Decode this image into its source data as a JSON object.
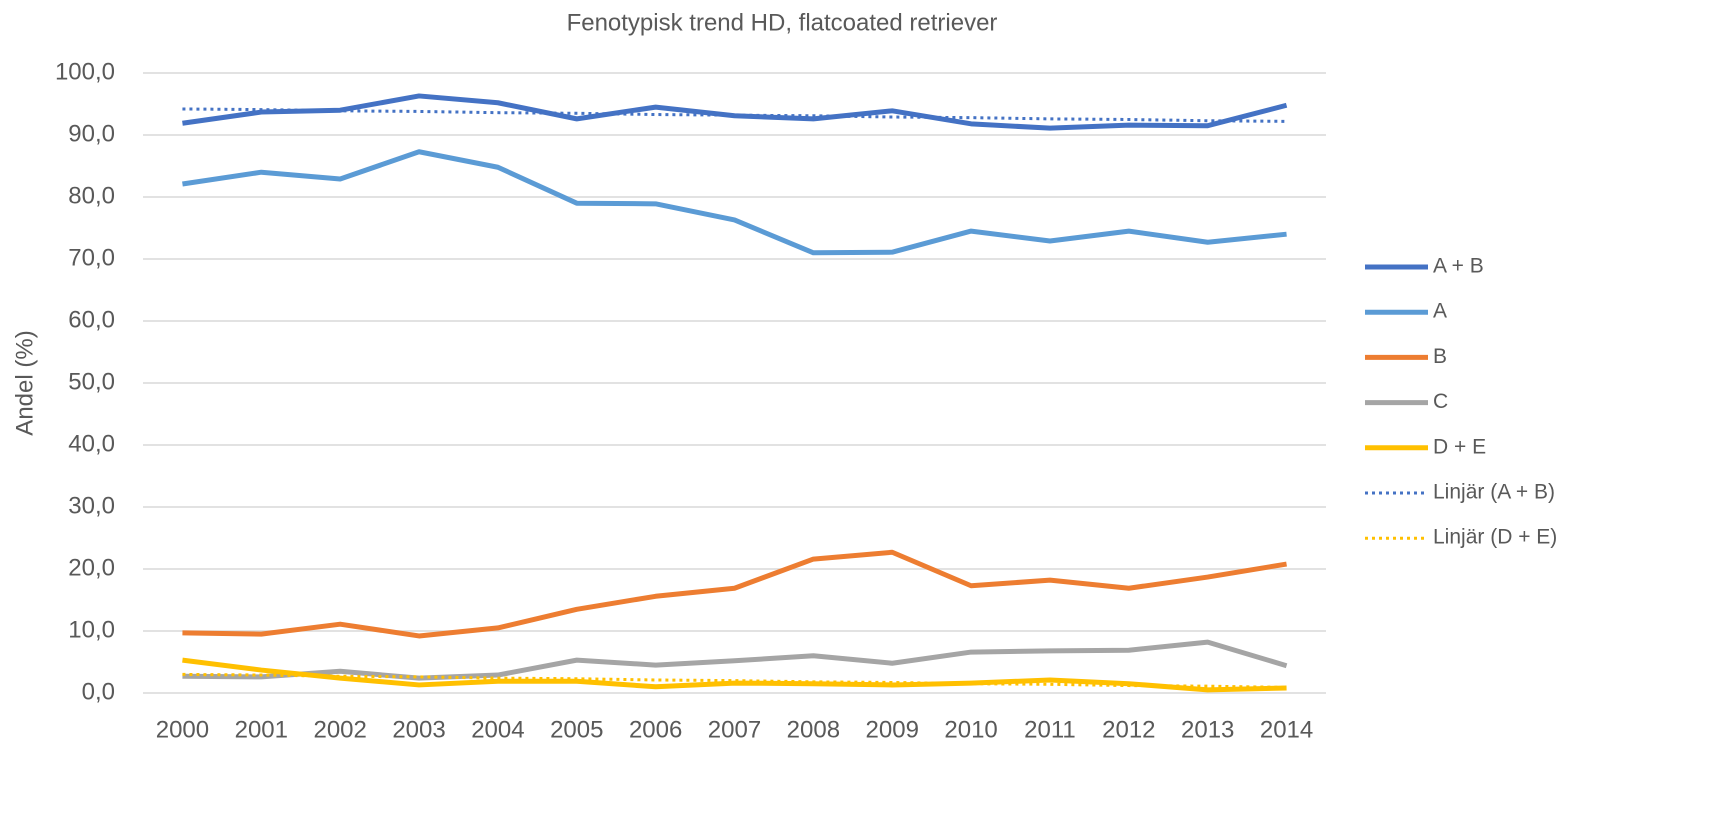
{
  "chart_data": {
    "type": "line",
    "title": "Fenotypisk trend HD, flatcoated retriever",
    "y_label": "Andel (%)",
    "categories": [
      "2000",
      "2001",
      "2002",
      "2003",
      "2004",
      "2005",
      "2006",
      "2007",
      "2008",
      "2009",
      "2010",
      "2011",
      "2012",
      "2013",
      "2014"
    ],
    "series": [
      {
        "name": "A + B",
        "color": "#4472c4",
        "style": "solid",
        "values": [
          91.9,
          93.7,
          94.0,
          96.3,
          95.2,
          92.6,
          94.5,
          93.1,
          92.6,
          93.9,
          91.8,
          91.1,
          91.6,
          91.5,
          94.8
        ]
      },
      {
        "name": "A",
        "color": "#5b9bd5",
        "style": "solid",
        "values": [
          82.1,
          84.0,
          82.9,
          87.3,
          84.8,
          79.0,
          78.9,
          76.3,
          71.0,
          71.1,
          74.5,
          72.9,
          74.5,
          72.7,
          74.0
        ]
      },
      {
        "name": "B",
        "color": "#ed7d31",
        "style": "solid",
        "values": [
          9.7,
          9.5,
          11.1,
          9.2,
          10.5,
          13.5,
          15.6,
          16.9,
          21.6,
          22.7,
          17.3,
          18.2,
          16.9,
          18.7,
          20.8
        ]
      },
      {
        "name": "C",
        "color": "#a5a5a5",
        "style": "solid",
        "values": [
          2.7,
          2.6,
          3.5,
          2.4,
          2.9,
          5.3,
          4.5,
          5.2,
          6.0,
          4.8,
          6.6,
          6.8,
          6.9,
          8.2,
          4.4
        ]
      },
      {
        "name": "D + E",
        "color": "#ffc000",
        "style": "solid",
        "values": [
          5.3,
          3.7,
          2.4,
          1.3,
          1.9,
          1.9,
          1.0,
          1.6,
          1.5,
          1.3,
          1.6,
          2.1,
          1.5,
          0.5,
          0.8
        ]
      },
      {
        "name": "Linjär (A + B)",
        "color": "#4472c4",
        "style": "dotted",
        "values": [
          94.2,
          94.1,
          93.9,
          93.8,
          93.6,
          93.5,
          93.3,
          93.2,
          93.1,
          92.9,
          92.8,
          92.6,
          92.5,
          92.3,
          92.2
        ]
      },
      {
        "name": "Linjär (D + E)",
        "color": "#ffc000",
        "style": "dotted",
        "values": [
          3.0,
          2.9,
          2.7,
          2.6,
          2.4,
          2.3,
          2.1,
          2.0,
          1.8,
          1.7,
          1.5,
          1.4,
          1.2,
          1.1,
          0.9
        ]
      }
    ],
    "ylim": [
      0,
      100
    ],
    "yticks": [
      {
        "value": 0,
        "label": "0,0"
      },
      {
        "value": 10,
        "label": "10,0"
      },
      {
        "value": 20,
        "label": "20,0"
      },
      {
        "value": 30,
        "label": "30,0"
      },
      {
        "value": 40,
        "label": "40,0"
      },
      {
        "value": 50,
        "label": "50,0"
      },
      {
        "value": 60,
        "label": "60,0"
      },
      {
        "value": 70,
        "label": "70,0"
      },
      {
        "value": 80,
        "label": "80,0"
      },
      {
        "value": 90,
        "label": "90,0"
      },
      {
        "value": 100,
        "label": "100,0"
      }
    ],
    "grid": true,
    "legend": "right"
  }
}
